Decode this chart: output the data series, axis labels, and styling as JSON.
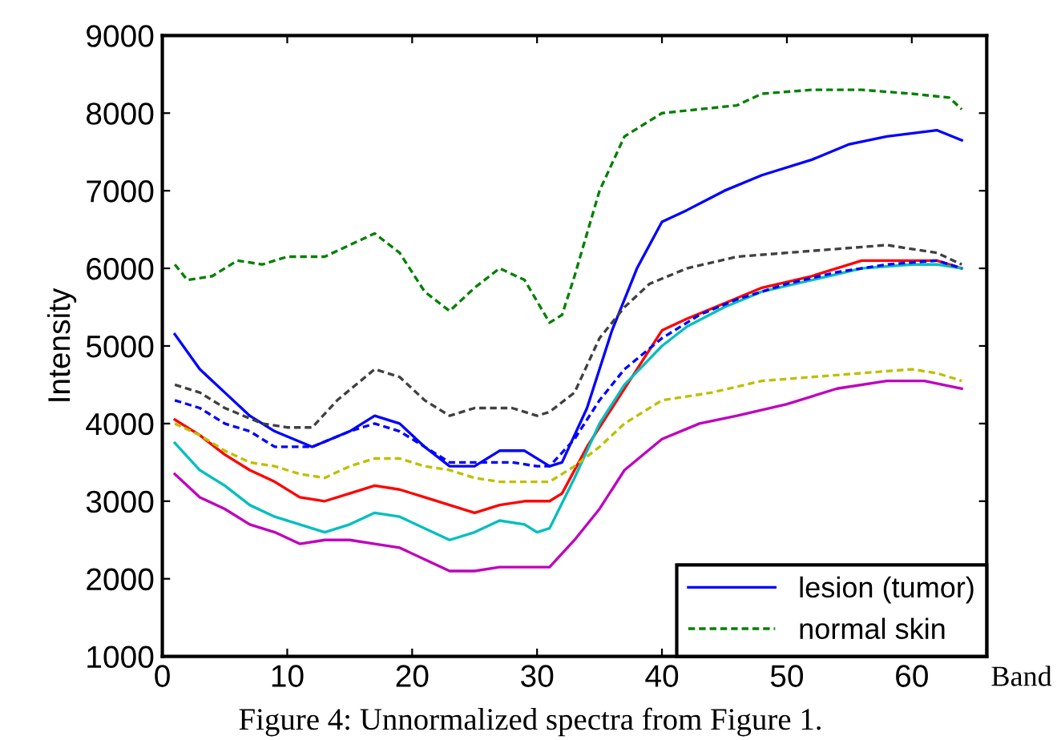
{
  "chart_data": {
    "type": "line",
    "xlabel": "Band",
    "ylabel": "Intensity",
    "annotations": [
      "Figure 4: Unnormalized spectra from Figure 1."
    ],
    "xlim": [
      0,
      66
    ],
    "ylim": [
      1000,
      9000
    ],
    "xticks": [
      0,
      10,
      20,
      30,
      40,
      50,
      60
    ],
    "yticks": [
      1000,
      2000,
      3000,
      4000,
      5000,
      6000,
      7000,
      8000,
      9000
    ],
    "grid": false,
    "legend": "bottom right",
    "series": [
      {
        "name": "lesion (tumor)",
        "color": "#0000ff",
        "line_style": "solid",
        "x": [
          1,
          3,
          5,
          7,
          9,
          12,
          15,
          17,
          19,
          21,
          23,
          25,
          27,
          29,
          31,
          32,
          34,
          36,
          38,
          40,
          42,
          45,
          48,
          52,
          55,
          58,
          62,
          64
        ],
        "values": [
          5150,
          4700,
          4400,
          4100,
          3900,
          3700,
          3900,
          4100,
          4000,
          3700,
          3450,
          3450,
          3650,
          3650,
          3450,
          3500,
          4200,
          5200,
          6000,
          6600,
          6750,
          7000,
          7200,
          7400,
          7600,
          7700,
          7780,
          7650
        ]
      },
      {
        "name": "normal skin",
        "color": "#008000",
        "line_style": "dashed",
        "x": [
          1,
          2,
          4,
          6,
          8,
          10,
          13,
          15,
          17,
          19,
          21,
          23,
          25,
          27,
          29,
          31,
          32,
          33,
          35,
          37,
          40,
          43,
          46,
          48,
          52,
          56,
          60,
          63,
          64
        ],
        "values": [
          6050,
          5850,
          5900,
          6100,
          6050,
          6150,
          6150,
          6300,
          6450,
          6200,
          5700,
          5450,
          5750,
          6000,
          5850,
          5300,
          5400,
          5900,
          7000,
          7700,
          8000,
          8050,
          8100,
          8250,
          8300,
          8300,
          8250,
          8200,
          8050
        ]
      },
      {
        "color": "#404040",
        "line_style": "dashed",
        "x": [
          1,
          3,
          5,
          8,
          10,
          12,
          14,
          17,
          19,
          21,
          23,
          25,
          28,
          30,
          31,
          33,
          35,
          37,
          39,
          42,
          46,
          50,
          54,
          58,
          62,
          64
        ],
        "values": [
          4500,
          4400,
          4200,
          4000,
          3950,
          3950,
          4300,
          4700,
          4600,
          4300,
          4100,
          4200,
          4200,
          4100,
          4150,
          4400,
          5100,
          5500,
          5800,
          6000,
          6150,
          6200,
          6250,
          6300,
          6200,
          6050
        ]
      },
      {
        "color": "#0000ff",
        "line_style": "dashed",
        "x": [
          1,
          3,
          5,
          7,
          9,
          12,
          15,
          17,
          19,
          21,
          23,
          26,
          28,
          30,
          31,
          33,
          35,
          37,
          40,
          43,
          46,
          50,
          54,
          58,
          62,
          64
        ],
        "values": [
          4300,
          4200,
          4000,
          3900,
          3700,
          3700,
          3900,
          4000,
          3900,
          3700,
          3500,
          3500,
          3500,
          3450,
          3450,
          3800,
          4300,
          4700,
          5100,
          5400,
          5600,
          5800,
          5950,
          6050,
          6100,
          6000
        ]
      },
      {
        "color": "#bfbf00",
        "line_style": "dashed",
        "x": [
          1,
          3,
          5,
          7,
          9,
          11,
          13,
          15,
          17,
          19,
          21,
          23,
          25,
          27,
          29,
          31,
          33,
          35,
          37,
          40,
          44,
          48,
          52,
          56,
          60,
          62,
          64
        ],
        "values": [
          4000,
          3850,
          3650,
          3500,
          3450,
          3350,
          3300,
          3450,
          3550,
          3550,
          3450,
          3400,
          3300,
          3250,
          3250,
          3250,
          3450,
          3700,
          4000,
          4300,
          4400,
          4550,
          4600,
          4650,
          4700,
          4650,
          4550
        ]
      },
      {
        "color": "#ff0000",
        "line_style": "solid",
        "x": [
          1,
          3,
          5,
          7,
          9,
          11,
          13,
          15,
          17,
          19,
          21,
          23,
          25,
          27,
          29,
          31,
          32,
          34,
          36,
          38,
          40,
          42,
          45,
          48,
          52,
          56,
          60,
          62,
          64
        ],
        "values": [
          4050,
          3850,
          3600,
          3400,
          3250,
          3050,
          3000,
          3100,
          3200,
          3150,
          3050,
          2950,
          2850,
          2950,
          3000,
          3000,
          3100,
          3700,
          4200,
          4700,
          5200,
          5350,
          5550,
          5750,
          5900,
          6100,
          6100,
          6100,
          6000
        ]
      },
      {
        "color": "#00bfbf",
        "line_style": "solid",
        "x": [
          1,
          3,
          5,
          7,
          9,
          11,
          13,
          15,
          17,
          19,
          21,
          23,
          25,
          27,
          29,
          30,
          31,
          33,
          35,
          37,
          40,
          42,
          45,
          48,
          52,
          56,
          60,
          62,
          64
        ],
        "values": [
          3750,
          3400,
          3200,
          2950,
          2800,
          2700,
          2600,
          2700,
          2850,
          2800,
          2650,
          2500,
          2600,
          2750,
          2700,
          2600,
          2650,
          3300,
          4000,
          4500,
          5000,
          5250,
          5500,
          5700,
          5850,
          6000,
          6050,
          6050,
          6000
        ]
      },
      {
        "color": "#bf00bf",
        "line_style": "solid",
        "x": [
          1,
          3,
          5,
          7,
          9,
          11,
          13,
          15,
          17,
          19,
          21,
          23,
          25,
          27,
          29,
          31,
          33,
          35,
          37,
          40,
          43,
          46,
          50,
          54,
          58,
          61,
          64
        ],
        "values": [
          3350,
          3050,
          2900,
          2700,
          2600,
          2450,
          2500,
          2500,
          2450,
          2400,
          2250,
          2100,
          2100,
          2150,
          2150,
          2150,
          2500,
          2900,
          3400,
          3800,
          4000,
          4100,
          4250,
          4450,
          4550,
          4550,
          4450
        ]
      }
    ]
  }
}
